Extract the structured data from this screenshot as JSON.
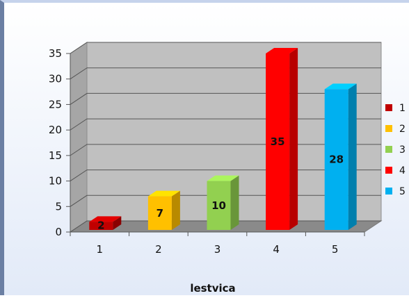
{
  "chart_data": {
    "type": "bar",
    "categories": [
      "1",
      "2",
      "3",
      "4",
      "5"
    ],
    "values": [
      2,
      7,
      10,
      35,
      28
    ],
    "colors": [
      "#c00000",
      "#ffc000",
      "#92d050",
      "#ff0000",
      "#00b0f0"
    ],
    "title": "",
    "xlabel": "lestvica",
    "ylabel": "",
    "ylim": [
      0,
      35
    ],
    "yticks": [
      0,
      5,
      10,
      15,
      20,
      25,
      30,
      35
    ],
    "grid": true,
    "legend": {
      "placement": "right",
      "entries": [
        "1",
        "2",
        "3",
        "4",
        "5"
      ]
    },
    "data_labels": [
      "2",
      "7",
      "10",
      "35",
      "28"
    ]
  }
}
